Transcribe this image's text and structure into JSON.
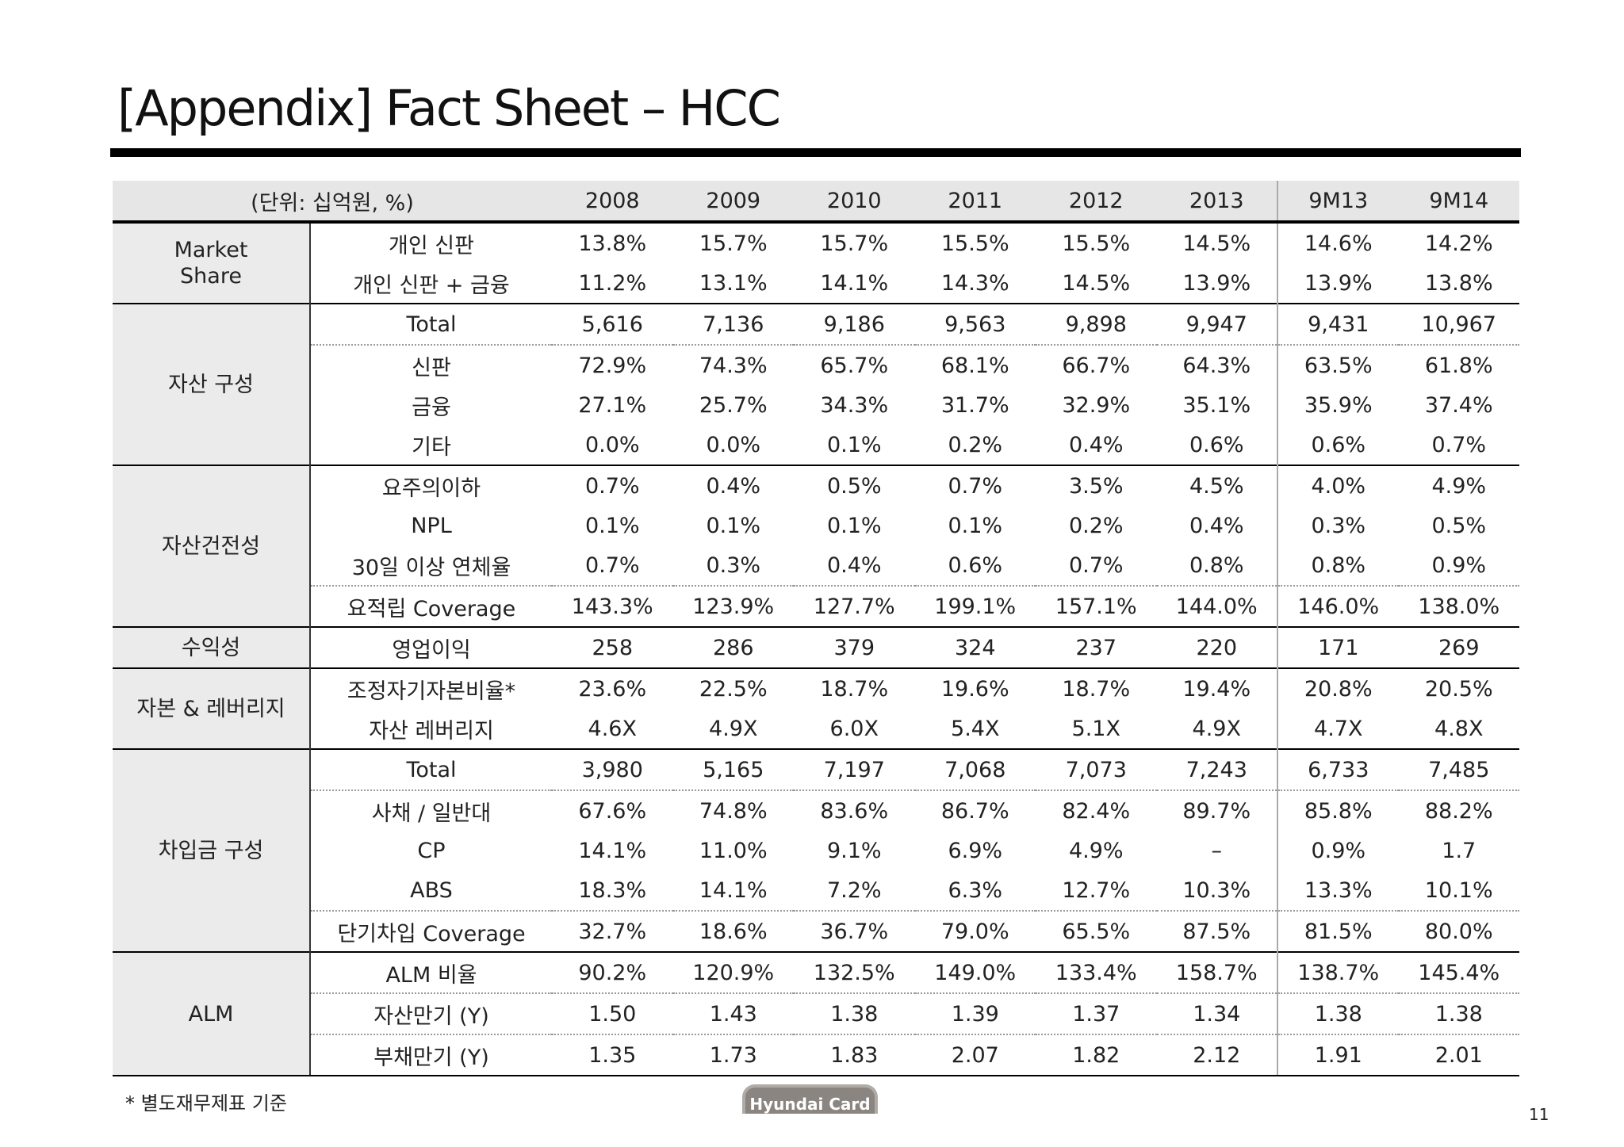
{
  "header": {
    "title": "[Appendix] Fact Sheet – HCC"
  },
  "table": {
    "unit": "(단위: 십억원, %)",
    "columns": [
      "2008",
      "2009",
      "2010",
      "2011",
      "2012",
      "2013",
      "9M13",
      "9M14"
    ],
    "groups": [
      {
        "label": "Market Share",
        "rows": [
          {
            "label": "개인 신판",
            "values": [
              "13.8%",
              "15.7%",
              "15.7%",
              "15.5%",
              "15.5%",
              "14.5%",
              "14.6%",
              "14.2%"
            ]
          },
          {
            "label": "개인 신판 + 금융",
            "values": [
              "11.2%",
              "13.1%",
              "14.1%",
              "14.3%",
              "14.5%",
              "13.9%",
              "13.9%",
              "13.8%"
            ]
          }
        ]
      },
      {
        "label": "자산 구성",
        "rows": [
          {
            "label": "Total",
            "values": [
              "5,616",
              "7,136",
              "9,186",
              "9,563",
              "9,898",
              "9,947",
              "9,431",
              "10,967"
            ]
          },
          {
            "label": "신판",
            "values": [
              "72.9%",
              "74.3%",
              "65.7%",
              "68.1%",
              "66.7%",
              "64.3%",
              "63.5%",
              "61.8%"
            ]
          },
          {
            "label": "금융",
            "values": [
              "27.1%",
              "25.7%",
              "34.3%",
              "31.7%",
              "32.9%",
              "35.1%",
              "35.9%",
              "37.4%"
            ]
          },
          {
            "label": "기타",
            "values": [
              "0.0%",
              "0.0%",
              "0.1%",
              "0.2%",
              "0.4%",
              "0.6%",
              "0.6%",
              "0.7%"
            ]
          }
        ]
      },
      {
        "label": "자산건전성",
        "rows": [
          {
            "label": "요주의이하",
            "values": [
              "0.7%",
              "0.4%",
              "0.5%",
              "0.7%",
              "3.5%",
              "4.5%",
              "4.0%",
              "4.9%"
            ]
          },
          {
            "label": "NPL",
            "values": [
              "0.1%",
              "0.1%",
              "0.1%",
              "0.1%",
              "0.2%",
              "0.4%",
              "0.3%",
              "0.5%"
            ]
          },
          {
            "label": "30일 이상 연체율",
            "values": [
              "0.7%",
              "0.3%",
              "0.4%",
              "0.6%",
              "0.7%",
              "0.8%",
              "0.8%",
              "0.9%"
            ]
          },
          {
            "label": "요적립 Coverage",
            "values": [
              "143.3%",
              "123.9%",
              "127.7%",
              "199.1%",
              "157.1%",
              "144.0%",
              "146.0%",
              "138.0%"
            ]
          }
        ]
      },
      {
        "label": "수익성",
        "rows": [
          {
            "label": "영업이익",
            "values": [
              "258",
              "286",
              "379",
              "324",
              "237",
              "220",
              "171",
              "269"
            ]
          }
        ]
      },
      {
        "label": "자본 & 레버리지",
        "rows": [
          {
            "label": "조정자기자본비율*",
            "values": [
              "23.6%",
              "22.5%",
              "18.7%",
              "19.6%",
              "18.7%",
              "19.4%",
              "20.8%",
              "20.5%"
            ]
          },
          {
            "label": "자산 레버리지",
            "values": [
              "4.6X",
              "4.9X",
              "6.0X",
              "5.4X",
              "5.1X",
              "4.9X",
              "4.7X",
              "4.8X"
            ]
          }
        ]
      },
      {
        "label": "차입금 구성",
        "rows": [
          {
            "label": "Total",
            "values": [
              "3,980",
              "5,165",
              "7,197",
              "7,068",
              "7,073",
              "7,243",
              "6,733",
              "7,485"
            ]
          },
          {
            "label": "사채 / 일반대",
            "values": [
              "67.6%",
              "74.8%",
              "83.6%",
              "86.7%",
              "82.4%",
              "89.7%",
              "85.8%",
              "88.2%"
            ]
          },
          {
            "label": "CP",
            "values": [
              "14.1%",
              "11.0%",
              "9.1%",
              "6.9%",
              "4.9%",
              "–",
              "0.9%",
              "1.7"
            ]
          },
          {
            "label": "ABS",
            "values": [
              "18.3%",
              "14.1%",
              "7.2%",
              "6.3%",
              "12.7%",
              "10.3%",
              "13.3%",
              "10.1%"
            ]
          },
          {
            "label": "단기차입 Coverage",
            "values": [
              "32.7%",
              "18.6%",
              "36.7%",
              "79.0%",
              "65.5%",
              "87.5%",
              "81.5%",
              "80.0%"
            ]
          }
        ]
      },
      {
        "label": "ALM",
        "rows": [
          {
            "label": "ALM 비율",
            "values": [
              "90.2%",
              "120.9%",
              "132.5%",
              "149.0%",
              "133.4%",
              "158.7%",
              "138.7%",
              "145.4%"
            ]
          },
          {
            "label": "자산만기 (Y)",
            "values": [
              "1.50",
              "1.43",
              "1.38",
              "1.39",
              "1.37",
              "1.34",
              "1.38",
              "1.38"
            ]
          },
          {
            "label": "부채만기 (Y)",
            "values": [
              "1.35",
              "1.73",
              "1.83",
              "2.07",
              "1.82",
              "2.12",
              "1.91",
              "2.01"
            ]
          }
        ]
      }
    ]
  },
  "footer": {
    "note": "* 별도재무제표 기준",
    "logo": "Hyundai Card",
    "page": "11"
  }
}
